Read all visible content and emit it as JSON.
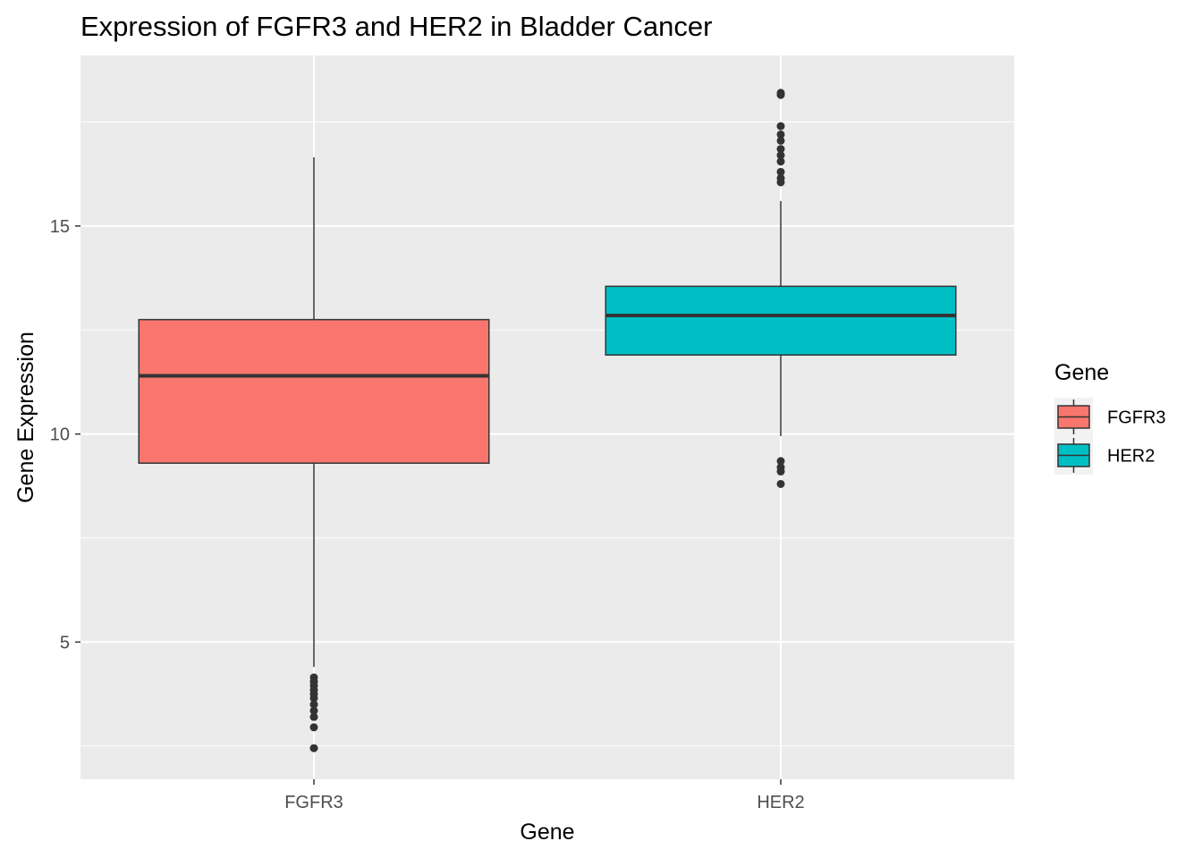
{
  "chart_data": {
    "type": "box",
    "title": "Expression of FGFR3 and HER2 in Bladder Cancer",
    "xlabel": "Gene",
    "ylabel": "Gene Expression",
    "ylim": [
      1.7,
      19.1
    ],
    "yticks": [
      5,
      10,
      15
    ],
    "grid": true,
    "legend": {
      "title": "Gene",
      "placement": "right",
      "entries": [
        "FGFR3",
        "HER2"
      ]
    },
    "categories": [
      "FGFR3",
      "HER2"
    ],
    "series": [
      {
        "name": "FGFR3",
        "color": "#F8766D",
        "q1": 9.3,
        "median": 11.4,
        "q3": 12.75,
        "whisker_low": 4.4,
        "whisker_high": 16.65,
        "outliers": [
          4.15,
          4.05,
          3.95,
          3.85,
          3.75,
          3.65,
          3.5,
          3.35,
          3.2,
          2.95,
          2.45
        ]
      },
      {
        "name": "HER2",
        "color": "#00BFC4",
        "q1": 11.9,
        "median": 12.85,
        "q3": 13.55,
        "whisker_low": 9.95,
        "whisker_high": 15.6,
        "outliers": [
          18.2,
          18.15,
          17.4,
          17.2,
          17.05,
          16.85,
          16.7,
          16.55,
          16.3,
          16.15,
          16.05,
          9.35,
          9.2,
          9.1,
          8.8
        ]
      }
    ]
  }
}
